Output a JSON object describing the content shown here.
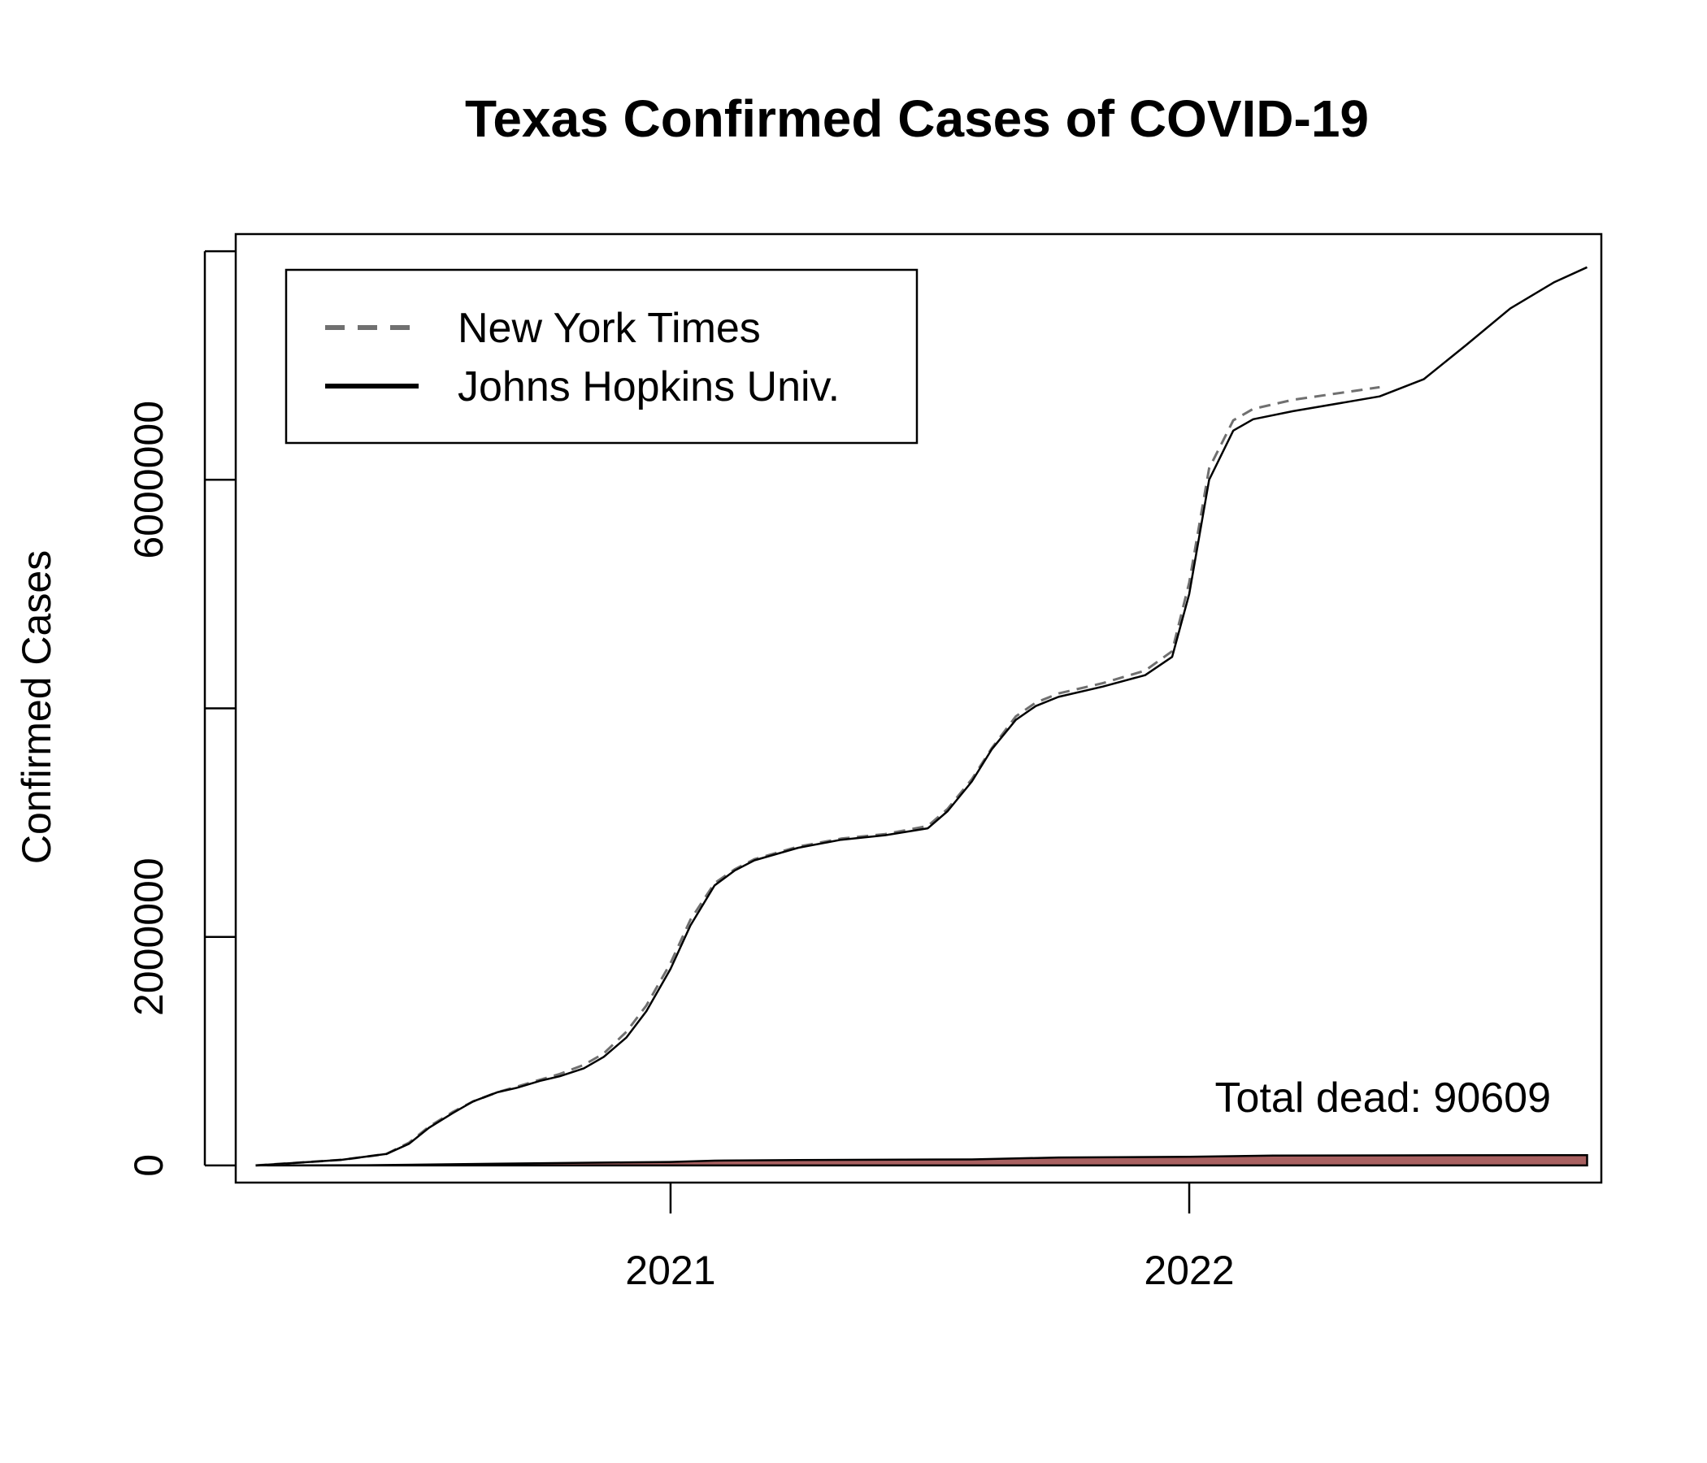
{
  "chart_data": {
    "type": "line",
    "title": "Texas Confirmed Cases of COVID-19",
    "ylabel": "Confirmed Cases",
    "xlabel": "",
    "xlim": [
      "2020-03-01",
      "2022-10-18"
    ],
    "ylim": [
      -150000,
      8150000
    ],
    "x_ticks": [
      {
        "date": "2021-01-01",
        "label": "2021"
      },
      {
        "date": "2022-01-01",
        "label": "2022"
      }
    ],
    "y_ticks": [
      {
        "value": 0,
        "label": "0"
      },
      {
        "value": 2000000,
        "label": "2000000"
      },
      {
        "value": 4000000,
        "label": ""
      },
      {
        "value": 6000000,
        "label": "6000000"
      },
      {
        "value": 8000000,
        "label": ""
      }
    ],
    "grid": false,
    "legend": {
      "position": "top-left",
      "entries": [
        {
          "name": "New York Times",
          "style": "dashed",
          "color": "#707070"
        },
        {
          "name": "Johns Hopkins Univ.",
          "style": "solid",
          "color": "#000000"
        }
      ]
    },
    "annotation": "Total dead: 90609",
    "series": [
      {
        "name": "New York Times",
        "style": "dashed",
        "color": "#707070",
        "points": [
          [
            "2020-03-15",
            0
          ],
          [
            "2020-04-15",
            25000
          ],
          [
            "2020-05-15",
            50000
          ],
          [
            "2020-06-15",
            100000
          ],
          [
            "2020-07-01",
            200000
          ],
          [
            "2020-07-15",
            340000
          ],
          [
            "2020-08-01",
            470000
          ],
          [
            "2020-08-15",
            560000
          ],
          [
            "2020-09-01",
            640000
          ],
          [
            "2020-09-15",
            690000
          ],
          [
            "2020-10-01",
            750000
          ],
          [
            "2020-10-15",
            800000
          ],
          [
            "2020-11-01",
            880000
          ],
          [
            "2020-11-15",
            980000
          ],
          [
            "2020-12-01",
            1170000
          ],
          [
            "2020-12-15",
            1400000
          ],
          [
            "2021-01-01",
            1770000
          ],
          [
            "2021-01-15",
            2150000
          ],
          [
            "2021-02-01",
            2470000
          ],
          [
            "2021-02-15",
            2590000
          ],
          [
            "2021-03-01",
            2680000
          ],
          [
            "2021-04-01",
            2790000
          ],
          [
            "2021-05-01",
            2860000
          ],
          [
            "2021-06-01",
            2900000
          ],
          [
            "2021-07-01",
            2970000
          ],
          [
            "2021-07-15",
            3120000
          ],
          [
            "2021-08-01",
            3380000
          ],
          [
            "2021-08-15",
            3650000
          ],
          [
            "2021-09-01",
            3930000
          ],
          [
            "2021-09-15",
            4050000
          ],
          [
            "2021-10-01",
            4130000
          ],
          [
            "2021-11-01",
            4220000
          ],
          [
            "2021-12-01",
            4330000
          ],
          [
            "2021-12-20",
            4500000
          ],
          [
            "2022-01-01",
            5100000
          ],
          [
            "2022-01-15",
            6100000
          ],
          [
            "2022-02-01",
            6520000
          ],
          [
            "2022-02-15",
            6620000
          ],
          [
            "2022-03-15",
            6700000
          ],
          [
            "2022-05-15",
            6810000
          ]
        ]
      },
      {
        "name": "Johns Hopkins Univ.",
        "style": "solid",
        "color": "#000000",
        "points": [
          [
            "2020-03-15",
            0
          ],
          [
            "2020-04-15",
            25000
          ],
          [
            "2020-05-15",
            50000
          ],
          [
            "2020-06-15",
            100000
          ],
          [
            "2020-07-01",
            190000
          ],
          [
            "2020-07-15",
            330000
          ],
          [
            "2020-08-01",
            460000
          ],
          [
            "2020-08-15",
            560000
          ],
          [
            "2020-09-01",
            640000
          ],
          [
            "2020-09-15",
            680000
          ],
          [
            "2020-10-01",
            740000
          ],
          [
            "2020-10-15",
            780000
          ],
          [
            "2020-11-01",
            850000
          ],
          [
            "2020-11-15",
            950000
          ],
          [
            "2020-12-01",
            1120000
          ],
          [
            "2020-12-15",
            1350000
          ],
          [
            "2021-01-01",
            1720000
          ],
          [
            "2021-01-15",
            2100000
          ],
          [
            "2021-02-01",
            2450000
          ],
          [
            "2021-02-15",
            2580000
          ],
          [
            "2021-03-01",
            2670000
          ],
          [
            "2021-04-01",
            2780000
          ],
          [
            "2021-05-01",
            2850000
          ],
          [
            "2021-06-01",
            2890000
          ],
          [
            "2021-07-01",
            2950000
          ],
          [
            "2021-07-15",
            3100000
          ],
          [
            "2021-08-01",
            3360000
          ],
          [
            "2021-08-15",
            3640000
          ],
          [
            "2021-09-01",
            3900000
          ],
          [
            "2021-09-15",
            4020000
          ],
          [
            "2021-10-01",
            4100000
          ],
          [
            "2021-11-01",
            4190000
          ],
          [
            "2021-12-01",
            4290000
          ],
          [
            "2021-12-20",
            4450000
          ],
          [
            "2022-01-01",
            5000000
          ],
          [
            "2022-01-15",
            6000000
          ],
          [
            "2022-02-01",
            6430000
          ],
          [
            "2022-02-15",
            6530000
          ],
          [
            "2022-03-15",
            6600000
          ],
          [
            "2022-05-15",
            6730000
          ],
          [
            "2022-06-15",
            6880000
          ],
          [
            "2022-07-15",
            7180000
          ],
          [
            "2022-08-15",
            7500000
          ],
          [
            "2022-09-15",
            7730000
          ],
          [
            "2022-10-08",
            7860000
          ]
        ]
      }
    ],
    "deaths_area": {
      "fill": "#a86060",
      "stroke": "#000000",
      "points": [
        [
          "2020-03-15",
          0
        ],
        [
          "2020-06-01",
          2000
        ],
        [
          "2020-09-01",
          15000
        ],
        [
          "2020-12-01",
          27000
        ],
        [
          "2021-01-01",
          31000
        ],
        [
          "2021-02-01",
          42000
        ],
        [
          "2021-04-01",
          48000
        ],
        [
          "2021-08-01",
          53000
        ],
        [
          "2021-10-01",
          70000
        ],
        [
          "2022-01-01",
          76000
        ],
        [
          "2022-03-01",
          86000
        ],
        [
          "2022-06-01",
          88000
        ],
        [
          "2022-10-08",
          90609
        ]
      ]
    }
  }
}
